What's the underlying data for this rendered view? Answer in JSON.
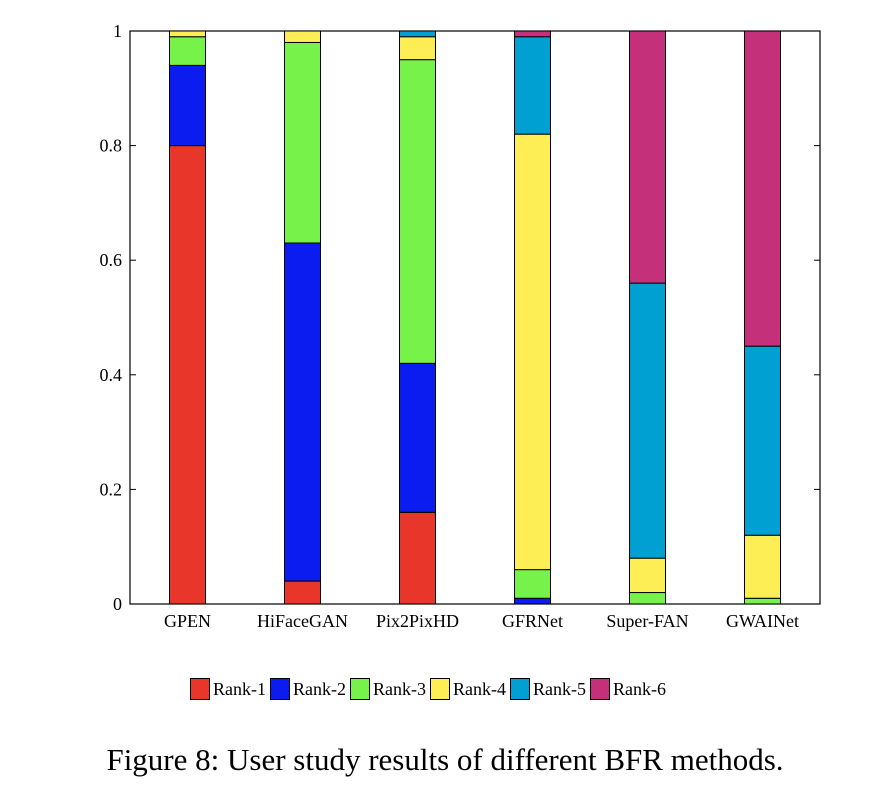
{
  "chart_data": {
    "type": "bar",
    "stacked": true,
    "categories": [
      "GPEN",
      "HiFaceGAN",
      "Pix2PixHD",
      "GFRNet",
      "Super-FAN",
      "GWAINet"
    ],
    "series": [
      {
        "name": "Rank-1",
        "color": "#e8372a",
        "values": [
          0.8,
          0.04,
          0.16,
          0.0,
          0.0,
          0.0
        ]
      },
      {
        "name": "Rank-2",
        "color": "#0a1cf0",
        "values": [
          0.14,
          0.59,
          0.26,
          0.01,
          0.0,
          0.0
        ]
      },
      {
        "name": "Rank-3",
        "color": "#77f24a",
        "values": [
          0.05,
          0.35,
          0.53,
          0.05,
          0.02,
          0.01
        ]
      },
      {
        "name": "Rank-4",
        "color": "#fdee55",
        "values": [
          0.01,
          0.02,
          0.04,
          0.76,
          0.06,
          0.11
        ]
      },
      {
        "name": "Rank-5",
        "color": "#00a0d2",
        "values": [
          0.0,
          0.0,
          0.01,
          0.17,
          0.48,
          0.33
        ]
      },
      {
        "name": "Rank-6",
        "color": "#c5307a",
        "values": [
          0.0,
          0.0,
          0.0,
          0.01,
          0.44,
          0.55
        ]
      }
    ],
    "ylim": [
      0,
      1
    ],
    "yticks": [
      0,
      0.2,
      0.4,
      0.6,
      0.8,
      1
    ],
    "ytick_labels": [
      "0",
      "0.2",
      "0.4",
      "0.6",
      "0.8",
      "1"
    ],
    "xlabel": "",
    "ylabel": "",
    "grid": false,
    "legend_position": "bottom"
  },
  "caption": "Figure 8: User study results of different BFR methods."
}
